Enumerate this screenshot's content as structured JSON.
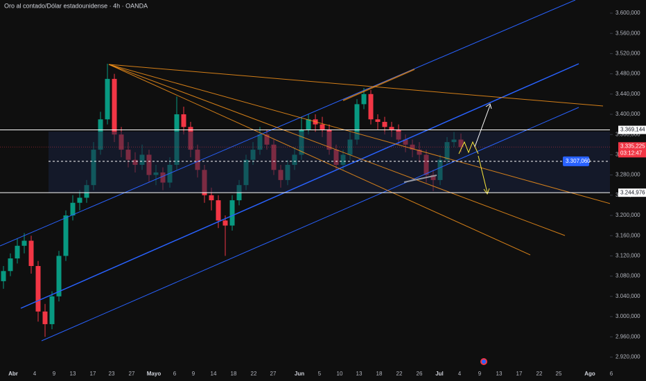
{
  "header": {
    "title": "Oro al contado/Dólar estadounidense · 4h · OANDA"
  },
  "chart_data": {
    "type": "candlestick",
    "up_color": "#089981",
    "down_color": "#f23645",
    "open": [
      3070,
      3090,
      3115,
      3140,
      3150,
      3100,
      3010,
      2985,
      3040,
      3120,
      3200,
      3225,
      3235,
      3260,
      3330,
      3390,
      3470,
      3360,
      3330,
      3310,
      3300,
      3320,
      3280,
      3285,
      3265,
      3300,
      3400,
      3375,
      3330,
      3290,
      3240,
      3230,
      3190,
      3180,
      3230,
      3260,
      3310,
      3330,
      3360,
      3340,
      3290,
      3270,
      3300,
      3320,
      3370,
      3390,
      3380,
      3370,
      3330,
      3300,
      3320,
      3350,
      3420,
      3440,
      3390,
      3385,
      3375,
      3370,
      3350,
      3340,
      3330,
      3320,
      3280,
      3270,
      3310,
      3345,
      3350
    ],
    "high": [
      3100,
      3125,
      3155,
      3165,
      3160,
      3110,
      3025,
      3050,
      3130,
      3210,
      3240,
      3250,
      3270,
      3345,
      3405,
      3500,
      3480,
      3375,
      3345,
      3325,
      3340,
      3330,
      3300,
      3295,
      3315,
      3435,
      3415,
      3385,
      3340,
      3300,
      3255,
      3240,
      3200,
      3240,
      3270,
      3320,
      3345,
      3375,
      3370,
      3350,
      3300,
      3310,
      3335,
      3395,
      3400,
      3400,
      3395,
      3380,
      3340,
      3330,
      3365,
      3430,
      3452,
      3448,
      3400,
      3395,
      3385,
      3380,
      3360,
      3350,
      3345,
      3330,
      3290,
      3320,
      3355,
      3365,
      3362
    ],
    "low": [
      3055,
      3080,
      3105,
      3125,
      3085,
      2990,
      2960,
      2975,
      3030,
      3110,
      3190,
      3210,
      3225,
      3250,
      3320,
      3380,
      3345,
      3315,
      3295,
      3285,
      3290,
      3265,
      3260,
      3250,
      3255,
      3290,
      3360,
      3315,
      3275,
      3225,
      3210,
      3175,
      3120,
      3170,
      3220,
      3250,
      3300,
      3320,
      3330,
      3280,
      3255,
      3260,
      3290,
      3310,
      3360,
      3365,
      3355,
      3320,
      3290,
      3290,
      3310,
      3340,
      3410,
      3380,
      3370,
      3360,
      3355,
      3340,
      3325,
      3315,
      3305,
      3265,
      3248,
      3260,
      3300,
      3335,
      3325
    ],
    "close": [
      3090,
      3115,
      3140,
      3150,
      3100,
      3010,
      2985,
      3040,
      3120,
      3200,
      3225,
      3235,
      3260,
      3330,
      3390,
      3470,
      3360,
      3330,
      3310,
      3300,
      3320,
      3280,
      3285,
      3265,
      3300,
      3400,
      3375,
      3330,
      3290,
      3240,
      3230,
      3190,
      3180,
      3230,
      3260,
      3310,
      3330,
      3360,
      3340,
      3290,
      3270,
      3300,
      3320,
      3370,
      3390,
      3380,
      3370,
      3330,
      3300,
      3320,
      3350,
      3420,
      3440,
      3390,
      3385,
      3375,
      3370,
      3350,
      3340,
      3330,
      3320,
      3280,
      3270,
      3310,
      3345,
      3350,
      3335.225
    ],
    "ylim": [
      2900,
      3626
    ],
    "yticks": [
      {
        "value": 3600,
        "label": "3.600,000"
      },
      {
        "value": 3560,
        "label": "3.560,000"
      },
      {
        "value": 3520,
        "label": "3.520,000"
      },
      {
        "value": 3480,
        "label": "3.480,000"
      },
      {
        "value": 3440,
        "label": "3.440,000"
      },
      {
        "value": 3400,
        "label": "3.400,000"
      },
      {
        "value": 3360,
        "label": "3.360,000"
      },
      {
        "value": 3320,
        "label": "3.320,000"
      },
      {
        "value": 3280,
        "label": "3.280,000"
      },
      {
        "value": 3240,
        "label": "3.240,000"
      },
      {
        "value": 3200,
        "label": "3.200,000"
      },
      {
        "value": 3160,
        "label": "3.160,000"
      },
      {
        "value": 3120,
        "label": "3.120,000"
      },
      {
        "value": 3080,
        "label": "3.080,000"
      },
      {
        "value": 3040,
        "label": "3.040,000"
      },
      {
        "value": 3000,
        "label": "3.000,000"
      },
      {
        "value": 2960,
        "label": "2.960,000"
      },
      {
        "value": 2920,
        "label": "2.920,000"
      }
    ],
    "x_labels": [
      "Abr",
      "4",
      "9",
      "13",
      "17",
      "23",
      "27",
      "Mayo",
      "6",
      "9",
      "14",
      "18",
      "22",
      "27",
      "Jun",
      "5",
      "10",
      "13",
      "18",
      "22",
      "26",
      "Jul",
      "4",
      "9",
      "13",
      "17",
      "22",
      "25",
      "Ago",
      "6"
    ],
    "levels": [
      {
        "value": 3369.144,
        "label": "3.369,144",
        "color": "#ffffff"
      },
      {
        "value": 3244.976,
        "label": "3.244,976",
        "color": "#ffffff"
      }
    ],
    "target": {
      "value": 3307.06,
      "label": "3.307,060",
      "color": "#2962ff"
    },
    "current_price": {
      "value": 3335.225,
      "label": "3.335,225",
      "countdown": "03:12:47",
      "color": "#f23645"
    }
  }
}
